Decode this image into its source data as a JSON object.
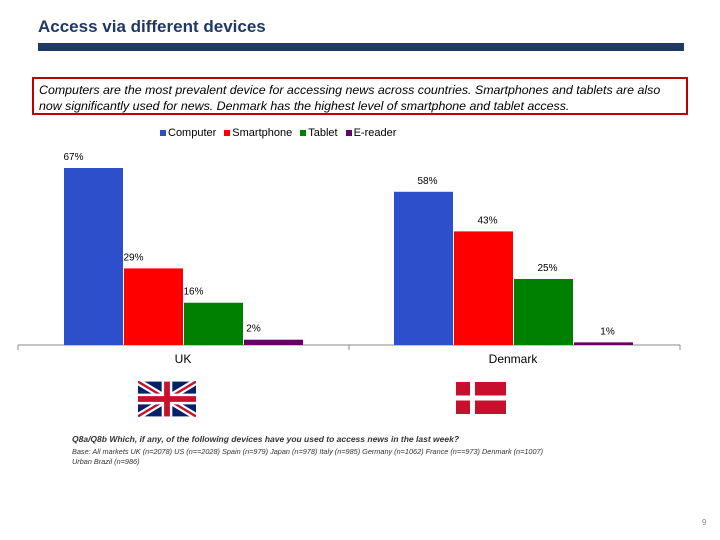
{
  "header": {
    "title": "Access via different devices"
  },
  "summary": {
    "text": "Computers are the most prevalent device for accessing news across countries. Smartphones and tablets are also now significantly used for news. Denmark has the highest level of smartphone and tablet access."
  },
  "chart_data": {
    "type": "bar",
    "categories": [
      "UK",
      "Denmark"
    ],
    "series": [
      {
        "name": "Computer",
        "color": "#2e4fcc",
        "values": [
          67,
          58
        ],
        "labels": [
          "67%",
          "58%"
        ]
      },
      {
        "name": "Smartphone",
        "color": "#ff0000",
        "values": [
          29,
          43
        ],
        "labels": [
          "29%",
          "43%"
        ]
      },
      {
        "name": "Tablet",
        "color": "#008000",
        "values": [
          16,
          25
        ],
        "labels": [
          "16%",
          "25%"
        ]
      },
      {
        "name": "E-reader",
        "color": "#660066",
        "values": [
          2,
          1
        ],
        "labels": [
          "2%",
          "1%"
        ]
      }
    ],
    "ylim": [
      0,
      67
    ],
    "title": "",
    "xlabel": "",
    "ylabel": ""
  },
  "flags": {
    "uk": "UK flag",
    "denmark": "Denmark flag"
  },
  "footer": {
    "question": "Q8a/Q8b Which, if any, of the following devices have you used to access news in the last week?",
    "base": "Base: All markets UK (n=2078) US (n==2028) Spain (n=979) Japan (n=978) Italy (n=985) Germany (n=1062) France (n==973) Denmark (n=1007) Urban Brazil (n=986)",
    "page_number": "9"
  }
}
